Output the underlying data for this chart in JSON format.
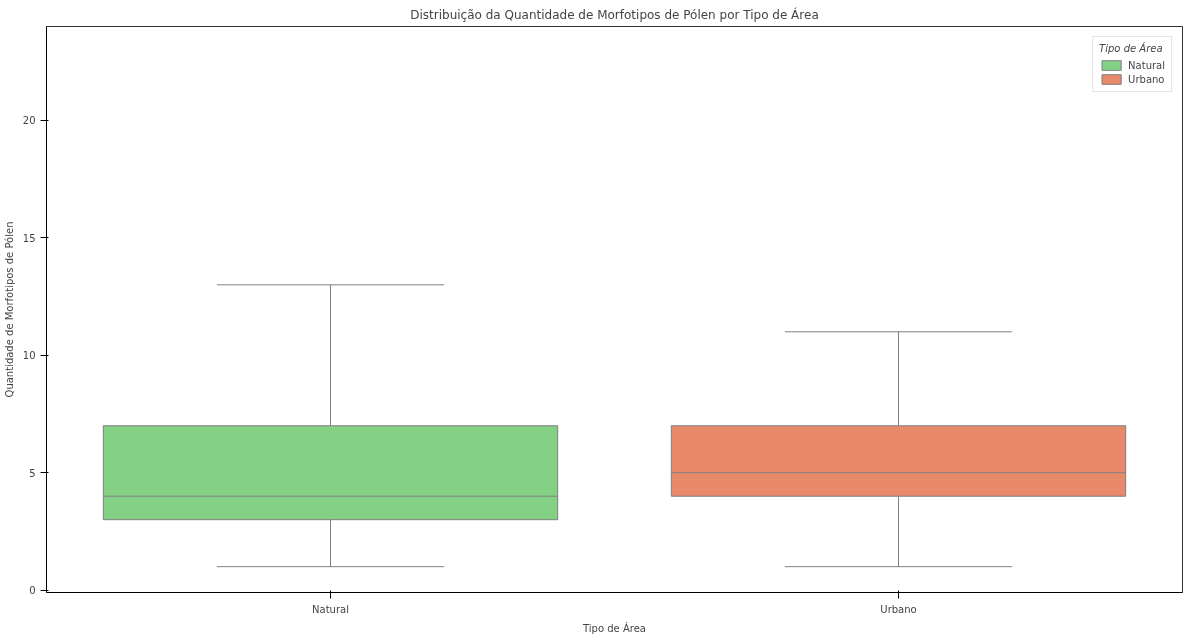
{
  "chart_data": {
    "type": "box",
    "title": "Distribuição da Quantidade de Morfotipos de Pólen por Tipo de Área",
    "xlabel": "Tipo de Área",
    "ylabel": "Quantidade de Morfotipos de Pólen",
    "legend_title": "Tipo de Área",
    "categories": [
      "Natural",
      "Urbano"
    ],
    "series": [
      {
        "name": "Natural",
        "color": "#84d186",
        "boxes": [
          {
            "low": 1,
            "q1": 3,
            "median": 4,
            "q3": 7,
            "high": 13
          },
          null
        ]
      },
      {
        "name": "Urbano",
        "color": "#e8896a",
        "boxes": [
          null,
          {
            "low": 1,
            "q1": 4,
            "median": 5,
            "q3": 7,
            "high": 11
          }
        ]
      }
    ],
    "ylim": [
      -0.1,
      24
    ],
    "yticks": [
      0,
      5,
      10,
      15,
      20
    ],
    "grid": false,
    "legend": "top right"
  }
}
